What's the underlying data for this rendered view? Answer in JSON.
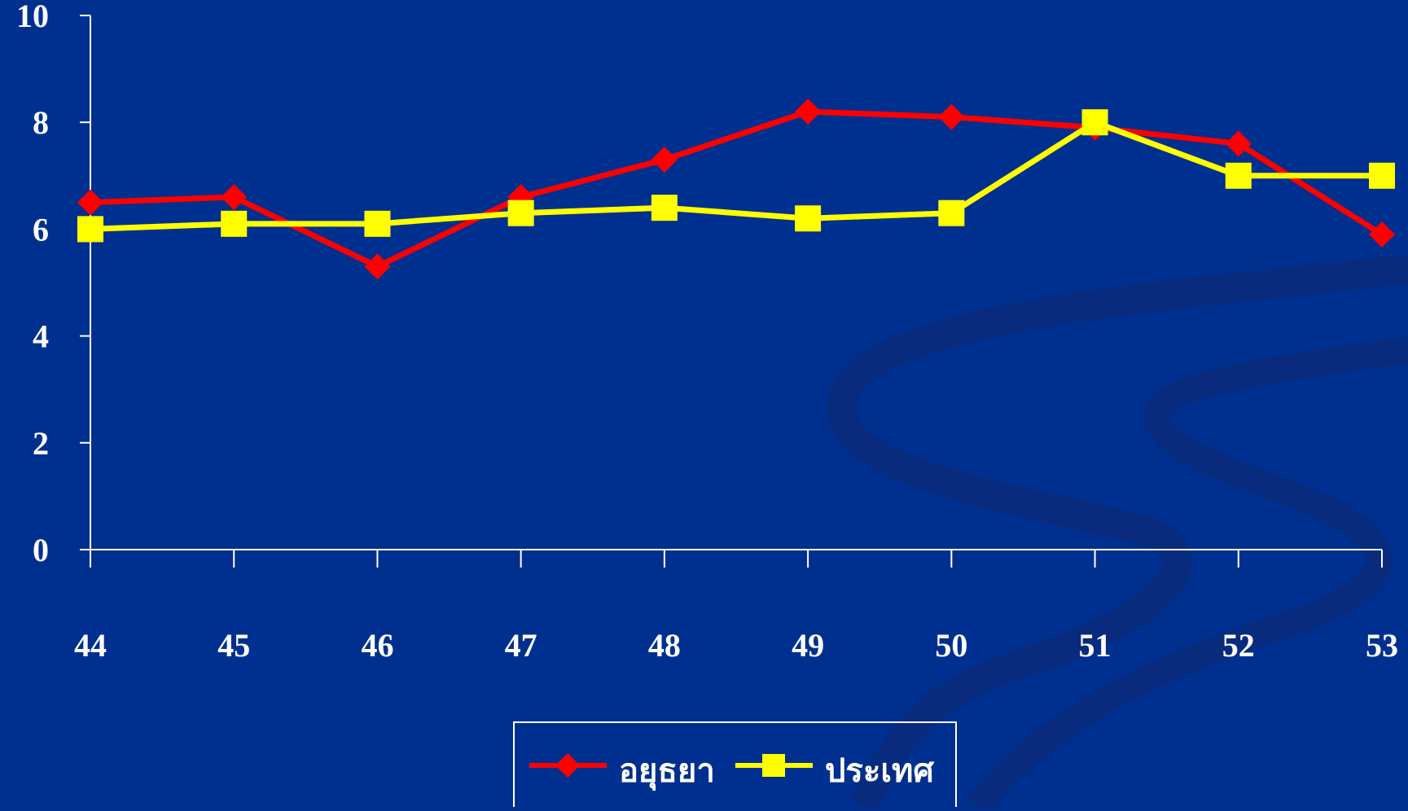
{
  "colors": {
    "background": "#00308F",
    "swirl": "#0A2A7A",
    "axis": "#FFFFFF",
    "text": "#FFFFFF",
    "series_1": "#FF0000",
    "series_2": "#FFFF00"
  },
  "chart_data": {
    "type": "line",
    "title": "",
    "xlabel": "",
    "ylabel": "",
    "x": [
      "44",
      "45",
      "46",
      "47",
      "48",
      "49",
      "50",
      "51",
      "52",
      "53"
    ],
    "ylim": [
      0,
      10
    ],
    "yticks": [
      "0",
      "2",
      "4",
      "6",
      "8",
      "10"
    ],
    "grid": false,
    "legend_position": "bottom-center",
    "series": [
      {
        "name": "อยุธยา",
        "color": "#FF0000",
        "marker": "diamond",
        "values": [
          6.5,
          6.6,
          5.3,
          6.6,
          7.3,
          8.2,
          8.1,
          7.9,
          7.6,
          5.9
        ]
      },
      {
        "name": "ประเทศ",
        "color": "#FFFF00",
        "marker": "square",
        "values": [
          6.0,
          6.1,
          6.1,
          6.3,
          6.4,
          6.2,
          6.3,
          8.0,
          7.0,
          7.0
        ]
      }
    ]
  }
}
